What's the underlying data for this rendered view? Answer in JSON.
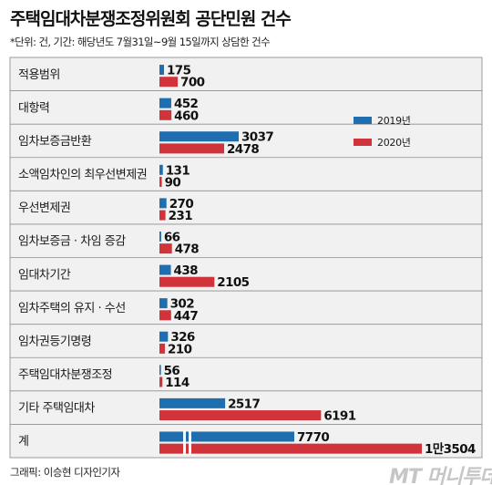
{
  "title": "주택임대차분쟁조정위원회 공단민원 건수",
  "subtitle": "*단위: 건, 기간: 해당년도 7월31일~9월 15일까지 상담한 건수",
  "footer": "그래픽: 이승현 디자인기자",
  "logo_text": "MT 머니투데이",
  "colors": {
    "s2019": "#1f6fb0",
    "s2020": "#d0343a"
  },
  "chart_data": {
    "type": "bar",
    "orientation": "horizontal",
    "categories": [
      "적용범위",
      "대항력",
      "임차보증금반환",
      "소액임차인의 최우선변제권",
      "우선변제권",
      "임차보증금 · 차임 증감",
      "임대차기간",
      "임차주택의 유지 · 수선",
      "임차권등기명령",
      "주택임대차분쟁조정",
      "기타 주택임대차",
      "계"
    ],
    "series": [
      {
        "name": "2019년",
        "color": "#1f6fb0",
        "values": [
          175,
          452,
          3037,
          131,
          270,
          66,
          438,
          302,
          326,
          56,
          2517,
          7770
        ],
        "labels": [
          "175",
          "452",
          "3037",
          "131",
          "270",
          "66",
          "438",
          "302",
          "326",
          "56",
          "2517",
          "7770"
        ]
      },
      {
        "name": "2020년",
        "color": "#d0343a",
        "values": [
          700,
          460,
          2478,
          90,
          231,
          478,
          2105,
          447,
          210,
          114,
          6191,
          13504
        ],
        "labels": [
          "700",
          "460",
          "2478",
          "90",
          "231",
          "478",
          "2105",
          "447",
          "210",
          "114",
          "6191",
          "1만3504"
        ]
      }
    ],
    "axis_break": {
      "category": "계",
      "note": "bars for 계 are drawn with a break mark"
    },
    "legend_position": "right",
    "grid": false
  }
}
